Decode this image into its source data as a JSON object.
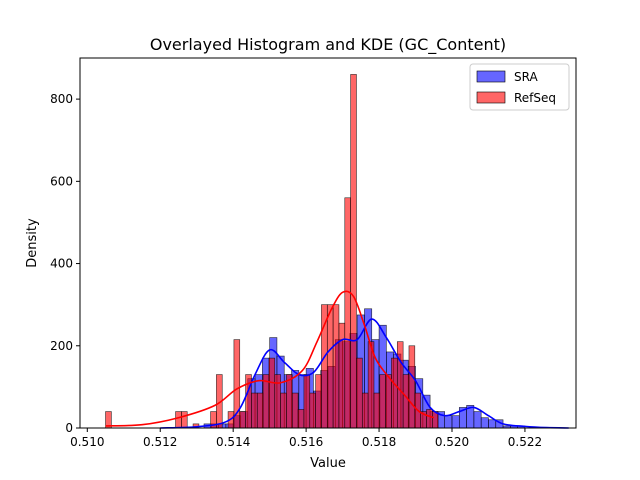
{
  "chart_data": {
    "type": "bar",
    "title": "Overlayed Histogram and KDE (GC_Content)",
    "xlabel": "Value",
    "ylabel": "Density",
    "xlim": [
      0.5098,
      0.5234
    ],
    "ylim": [
      0,
      900
    ],
    "xticks": [
      0.51,
      0.512,
      0.514,
      0.516,
      0.518,
      0.52,
      0.522
    ],
    "xtick_labels": [
      "0.510",
      "0.512",
      "0.514",
      "0.516",
      "0.518",
      "0.520",
      "0.522"
    ],
    "yticks": [
      0,
      200,
      400,
      600,
      800
    ],
    "ytick_labels": [
      "0",
      "200",
      "400",
      "600",
      "800"
    ],
    "grid": false,
    "legend_position": "top-right",
    "series": [
      {
        "name": "SRA",
        "color": "#0000ff",
        "kind": "histogram+kde",
        "bin_width": 0.0002,
        "bins": [
          [
            0.5132,
            10
          ],
          [
            0.5134,
            10
          ],
          [
            0.5136,
            10
          ],
          [
            0.5138,
            10
          ],
          [
            0.514,
            30
          ],
          [
            0.5142,
            40
          ],
          [
            0.5144,
            120
          ],
          [
            0.5146,
            130
          ],
          [
            0.5148,
            170
          ],
          [
            0.515,
            220
          ],
          [
            0.5152,
            175
          ],
          [
            0.5154,
            130
          ],
          [
            0.5156,
            140
          ],
          [
            0.5158,
            130
          ],
          [
            0.516,
            145
          ],
          [
            0.5162,
            90
          ],
          [
            0.5164,
            140
          ],
          [
            0.5166,
            150
          ],
          [
            0.5168,
            215
          ],
          [
            0.517,
            210
          ],
          [
            0.5172,
            230
          ],
          [
            0.5174,
            275
          ],
          [
            0.5176,
            290
          ],
          [
            0.5178,
            215
          ],
          [
            0.518,
            250
          ],
          [
            0.5182,
            185
          ],
          [
            0.5184,
            180
          ],
          [
            0.5186,
            165
          ],
          [
            0.5188,
            150
          ],
          [
            0.519,
            120
          ],
          [
            0.5192,
            80
          ],
          [
            0.5194,
            40
          ],
          [
            0.5196,
            40
          ],
          [
            0.5198,
            30
          ],
          [
            0.52,
            30
          ],
          [
            0.5202,
            50
          ],
          [
            0.5204,
            55
          ],
          [
            0.5206,
            40
          ],
          [
            0.5208,
            25
          ],
          [
            0.521,
            20
          ],
          [
            0.5212,
            20
          ],
          [
            0.5214,
            5
          ],
          [
            0.5216,
            5
          ],
          [
            0.5218,
            5
          ]
        ],
        "kde_x": [
          0.512,
          0.513,
          0.5138,
          0.5142,
          0.5146,
          0.515,
          0.5154,
          0.5158,
          0.5162,
          0.5166,
          0.517,
          0.5174,
          0.5178,
          0.5182,
          0.5186,
          0.519,
          0.5194,
          0.5198,
          0.5202,
          0.5206,
          0.521,
          0.5214,
          0.522,
          0.5226,
          0.5232
        ],
        "kde_y": [
          0,
          3,
          15,
          50,
          130,
          190,
          160,
          130,
          135,
          185,
          215,
          215,
          265,
          220,
          160,
          115,
          50,
          30,
          40,
          50,
          30,
          10,
          4,
          1,
          0
        ]
      },
      {
        "name": "RefSeq",
        "color": "#ff0000",
        "kind": "histogram+kde",
        "bin_width": 0.00016,
        "bins": [
          [
            0.5105,
            40
          ],
          [
            0.51242,
            40
          ],
          [
            0.51258,
            40
          ],
          [
            0.5129,
            10
          ],
          [
            0.51338,
            40
          ],
          [
            0.51354,
            130
          ],
          [
            0.51386,
            40
          ],
          [
            0.51402,
            215
          ],
          [
            0.51418,
            40
          ],
          [
            0.51434,
            130
          ],
          [
            0.5145,
            85
          ],
          [
            0.51466,
            85
          ],
          [
            0.51482,
            130
          ],
          [
            0.51498,
            170
          ],
          [
            0.51514,
            130
          ],
          [
            0.5153,
            85
          ],
          [
            0.51546,
            130
          ],
          [
            0.51562,
            85
          ],
          [
            0.51578,
            45
          ],
          [
            0.51594,
            130
          ],
          [
            0.5161,
            85
          ],
          [
            0.51626,
            130
          ],
          [
            0.51642,
            300
          ],
          [
            0.51658,
            300
          ],
          [
            0.51674,
            300
          ],
          [
            0.5169,
            255
          ],
          [
            0.51706,
            560
          ],
          [
            0.51722,
            860
          ],
          [
            0.51738,
            170
          ],
          [
            0.51754,
            85
          ],
          [
            0.5177,
            210
          ],
          [
            0.51786,
            85
          ],
          [
            0.51802,
            130
          ],
          [
            0.51818,
            130
          ],
          [
            0.51834,
            170
          ],
          [
            0.5185,
            210
          ],
          [
            0.51866,
            130
          ],
          [
            0.51882,
            200
          ],
          [
            0.51898,
            85
          ],
          [
            0.51914,
            40
          ],
          [
            0.5193,
            45
          ],
          [
            0.51946,
            40
          ]
        ],
        "kde_x": [
          0.5105,
          0.5115,
          0.5125,
          0.5135,
          0.5141,
          0.5147,
          0.5153,
          0.5159,
          0.5163,
          0.5167,
          0.517,
          0.5173,
          0.5176,
          0.5179,
          0.5183,
          0.5187,
          0.5191,
          0.5195
        ],
        "kde_y": [
          5,
          8,
          25,
          55,
          95,
          115,
          110,
          140,
          210,
          290,
          330,
          320,
          250,
          170,
          120,
          80,
          40,
          25
        ]
      }
    ]
  }
}
